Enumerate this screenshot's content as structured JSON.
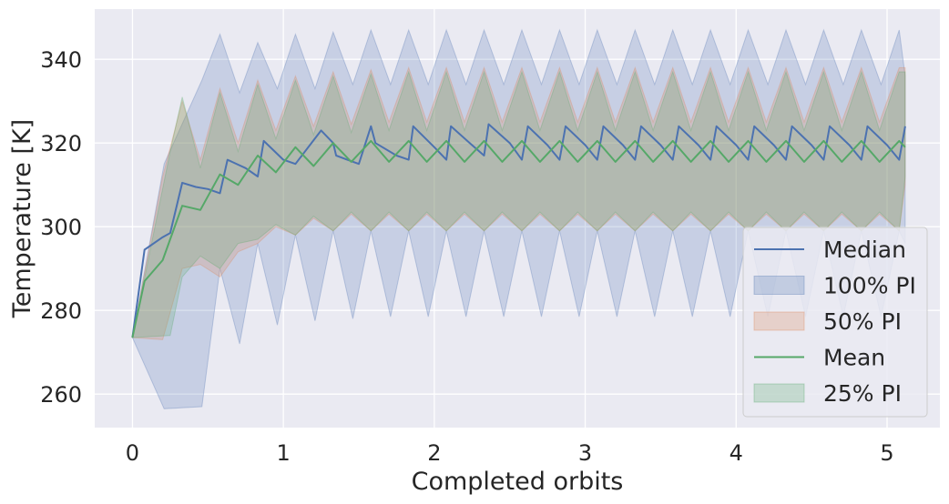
{
  "chart_data": {
    "type": "line",
    "title": "",
    "xlabel": "Completed orbits",
    "ylabel": "Temperature [K]",
    "xlim": [
      -0.25,
      5.35
    ],
    "ylim": [
      252,
      352
    ],
    "x_ticks": [
      0,
      1,
      2,
      3,
      4,
      5
    ],
    "y_ticks": [
      260,
      280,
      300,
      320,
      340
    ],
    "grid": true,
    "legend_position": "lower-right",
    "legend": [
      {
        "label": "Median",
        "kind": "line",
        "color": "#4c72b0"
      },
      {
        "label": "100% PI",
        "kind": "band",
        "color": "#4c72b0"
      },
      {
        "label": "50% PI",
        "kind": "band",
        "color": "#dd8452"
      },
      {
        "label": "Mean",
        "kind": "line",
        "color": "#55a868"
      },
      {
        "label": "25% PI",
        "kind": "band",
        "color": "#55a868"
      }
    ],
    "series": [
      {
        "name": "Median",
        "color": "#4c72b0",
        "x": [
          0,
          0.08,
          0.2,
          0.25,
          0.33,
          0.42,
          0.5,
          0.58,
          0.63,
          0.75,
          0.83,
          0.87,
          1.0,
          1.08,
          1.25,
          1.33,
          1.35,
          1.5,
          1.58,
          1.61,
          1.75,
          1.83,
          1.86,
          2.0,
          2.08,
          2.11,
          2.25,
          2.33,
          2.36,
          2.5,
          2.58,
          2.62,
          2.75,
          2.83,
          2.87,
          3.0,
          3.08,
          3.12,
          3.25,
          3.33,
          3.37,
          3.5,
          3.58,
          3.62,
          3.75,
          3.83,
          3.87,
          4.0,
          4.08,
          4.12,
          4.25,
          4.33,
          4.37,
          4.5,
          4.58,
          4.62,
          4.75,
          4.83,
          4.87,
          5.0,
          5.08,
          5.12
        ],
        "y": [
          273.5,
          294.5,
          297.5,
          298.5,
          310.5,
          309.5,
          309,
          308,
          316,
          314,
          312,
          320.5,
          316,
          315,
          323,
          320,
          317,
          315,
          324,
          320,
          317,
          316,
          324,
          319,
          316,
          324,
          319.5,
          317,
          324.5,
          320,
          316,
          324,
          319.5,
          316,
          324,
          319.5,
          316,
          324,
          319.5,
          316,
          324,
          319.5,
          316,
          324,
          319.5,
          316,
          324,
          319.5,
          316,
          324,
          319.5,
          316,
          324,
          319.5,
          316,
          324,
          319.5,
          316,
          324,
          319.5,
          316,
          324
        ]
      },
      {
        "name": "Mean",
        "color": "#55a868",
        "x": [
          0,
          0.08,
          0.2,
          0.33,
          0.45,
          0.58,
          0.7,
          0.83,
          0.95,
          1.08,
          1.2,
          1.33,
          1.45,
          1.58,
          1.7,
          1.83,
          1.95,
          2.08,
          2.2,
          2.33,
          2.45,
          2.58,
          2.7,
          2.83,
          2.95,
          3.08,
          3.2,
          3.33,
          3.45,
          3.58,
          3.7,
          3.83,
          3.95,
          4.08,
          4.2,
          4.33,
          4.45,
          4.58,
          4.7,
          4.83,
          4.95,
          5.08,
          5.12
        ],
        "y": [
          273.5,
          287,
          292,
          305,
          304,
          312.5,
          310,
          317,
          313,
          319,
          314.5,
          320,
          315.5,
          320.5,
          315.5,
          320.5,
          315.5,
          320.5,
          315.5,
          320.5,
          315.5,
          320.5,
          315.5,
          320.5,
          315.5,
          320.5,
          315.5,
          320.5,
          315.5,
          320.5,
          315.5,
          320.5,
          315.5,
          320.5,
          315.5,
          320.5,
          315.5,
          320.5,
          315.5,
          320.5,
          315.5,
          320.5,
          319
        ]
      }
    ],
    "bands": [
      {
        "name": "100% PI",
        "color": "#4c72b0",
        "x": [
          0,
          0.21,
          0.46,
          0.58,
          0.71,
          0.83,
          0.96,
          1.08,
          1.21,
          1.33,
          1.46,
          1.58,
          1.71,
          1.83,
          1.96,
          2.08,
          2.21,
          2.33,
          2.46,
          2.58,
          2.71,
          2.83,
          2.96,
          3.08,
          3.21,
          3.33,
          3.46,
          3.58,
          3.71,
          3.83,
          3.96,
          4.08,
          4.21,
          4.33,
          4.46,
          4.58,
          4.71,
          4.83,
          4.96,
          5.08,
          5.12
        ],
        "upper": [
          273.5,
          315,
          335,
          346,
          332,
          344,
          333,
          346,
          333,
          346.5,
          334,
          347,
          334,
          347,
          334,
          347,
          334,
          347,
          334,
          347,
          334,
          347,
          334,
          347,
          334,
          347,
          334,
          347,
          334,
          347,
          334,
          347,
          334,
          347,
          334,
          347,
          334,
          347,
          334,
          347,
          336
        ],
        "lower": [
          273.5,
          256.5,
          257,
          290,
          272,
          296,
          276.5,
          298,
          277.5,
          299,
          278,
          299,
          278.5,
          299,
          278.5,
          299,
          278.5,
          299,
          278.5,
          299,
          278.5,
          299,
          278.5,
          299,
          278.5,
          299,
          278.5,
          299,
          278.5,
          299,
          278.5,
          299,
          278.5,
          299,
          278.5,
          299,
          278.5,
          299,
          278.5,
          299,
          296
        ]
      },
      {
        "name": "50% PI",
        "color": "#dd8452",
        "x": [
          0,
          0.2,
          0.33,
          0.45,
          0.58,
          0.7,
          0.83,
          0.95,
          1.08,
          1.2,
          1.33,
          1.45,
          1.58,
          1.7,
          1.83,
          1.95,
          2.08,
          2.2,
          2.33,
          2.45,
          2.58,
          2.7,
          2.83,
          2.95,
          3.08,
          3.2,
          3.33,
          3.45,
          3.58,
          3.7,
          3.83,
          3.95,
          4.08,
          4.2,
          4.33,
          4.45,
          4.58,
          4.7,
          4.83,
          4.95,
          5.08,
          5.12
        ],
        "upper": [
          273.5,
          312,
          330,
          316,
          333,
          320,
          335,
          323,
          336,
          324,
          337,
          324.5,
          337.5,
          325,
          338,
          325,
          338,
          325,
          338,
          325,
          338,
          325,
          338,
          325,
          338,
          325,
          338,
          325,
          338,
          325,
          338,
          325,
          338,
          325,
          338,
          325,
          338,
          325,
          338,
          325,
          338,
          338
        ],
        "lower": [
          273.5,
          273,
          290,
          291,
          288,
          294,
          296,
          300,
          298,
          302,
          299,
          303,
          299,
          303,
          299,
          303,
          299,
          303,
          299,
          303,
          299,
          303,
          299,
          303,
          299,
          303,
          299,
          303,
          299,
          303,
          299,
          303,
          299,
          303,
          299,
          303,
          299,
          303,
          299,
          303,
          299,
          310
        ]
      },
      {
        "name": "25% PI",
        "color": "#55a868",
        "x": [
          0,
          0.25,
          0.33,
          0.45,
          0.58,
          0.7,
          0.83,
          0.95,
          1.08,
          1.2,
          1.33,
          1.45,
          1.58,
          1.7,
          1.83,
          1.95,
          2.08,
          2.2,
          2.33,
          2.45,
          2.58,
          2.7,
          2.83,
          2.95,
          3.08,
          3.2,
          3.33,
          3.45,
          3.58,
          3.7,
          3.83,
          3.95,
          4.08,
          4.2,
          4.33,
          4.45,
          4.58,
          4.7,
          4.83,
          4.95,
          5.08,
          5.12
        ],
        "upper": [
          273.5,
          318,
          331,
          314,
          332,
          318,
          334,
          321,
          335,
          322,
          336,
          322.5,
          336.5,
          323,
          337,
          323,
          337,
          323,
          337,
          323,
          337,
          323,
          337,
          323,
          337,
          323,
          337,
          323,
          337,
          323,
          337,
          323,
          337,
          323,
          337,
          323,
          337,
          323,
          337,
          323,
          337,
          337
        ],
        "lower": [
          273.5,
          274,
          288,
          293,
          290,
          296,
          297,
          300.5,
          298,
          302.5,
          299,
          303.5,
          299,
          303.5,
          299,
          303.5,
          299,
          303.5,
          299,
          303.5,
          299,
          303.5,
          299,
          303.5,
          299,
          303.5,
          299,
          303.5,
          299,
          303.5,
          299,
          303.5,
          299,
          303.5,
          299,
          303.5,
          299,
          303.5,
          299,
          303.5,
          299,
          312
        ]
      }
    ]
  }
}
